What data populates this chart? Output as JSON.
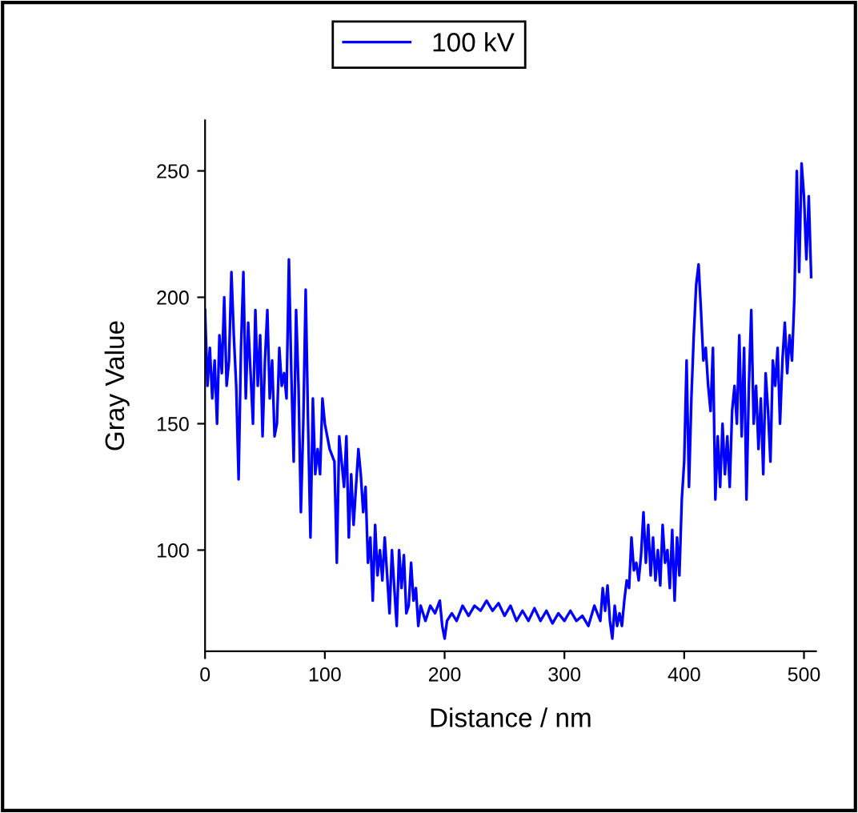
{
  "chart_data": {
    "type": "line",
    "xlabel": "Distance / nm",
    "ylabel": "Gray Value",
    "xlim": [
      0,
      510
    ],
    "ylim": [
      60,
      270
    ],
    "xticks": [
      0,
      100,
      200,
      300,
      400,
      500
    ],
    "yticks": [
      100,
      150,
      200,
      250
    ],
    "grid": false,
    "legend": "top",
    "marker": "none",
    "line_style": "solid",
    "series": [
      {
        "name": "100 kV",
        "color": "#0000ff",
        "x": [
          0,
          2,
          4,
          6,
          8,
          10,
          12,
          14,
          16,
          18,
          20,
          22,
          24,
          26,
          28,
          30,
          32,
          34,
          36,
          38,
          40,
          42,
          44,
          46,
          48,
          50,
          52,
          54,
          56,
          58,
          60,
          62,
          64,
          66,
          68,
          70,
          72,
          74,
          76,
          78,
          80,
          82,
          84,
          86,
          88,
          90,
          92,
          94,
          96,
          98,
          100,
          104,
          108,
          110,
          112,
          116,
          118,
          120,
          122,
          124,
          126,
          128,
          130,
          132,
          134,
          136,
          138,
          140,
          142,
          144,
          146,
          148,
          150,
          152,
          154,
          156,
          158,
          160,
          162,
          164,
          166,
          168,
          170,
          172,
          174,
          176,
          178,
          180,
          184,
          188,
          192,
          196,
          198,
          200,
          202,
          206,
          210,
          215,
          220,
          225,
          230,
          235,
          240,
          245,
          250,
          255,
          260,
          265,
          270,
          275,
          280,
          285,
          290,
          295,
          300,
          305,
          310,
          315,
          320,
          325,
          330,
          332,
          334,
          336,
          338,
          340,
          342,
          344,
          346,
          348,
          350,
          352,
          354,
          356,
          358,
          360,
          362,
          364,
          366,
          368,
          370,
          372,
          374,
          376,
          378,
          380,
          382,
          384,
          386,
          388,
          390,
          392,
          394,
          396,
          398,
          400,
          402,
          404,
          406,
          408,
          410,
          412,
          414,
          416,
          418,
          420,
          422,
          424,
          426,
          428,
          430,
          432,
          434,
          436,
          438,
          440,
          442,
          444,
          446,
          448,
          450,
          452,
          454,
          456,
          458,
          460,
          462,
          464,
          466,
          468,
          470,
          472,
          474,
          476,
          478,
          480,
          482,
          484,
          486,
          488,
          490,
          492,
          494,
          496,
          498,
          500,
          502,
          504,
          506
        ],
        "values": [
          195,
          165,
          180,
          160,
          175,
          150,
          185,
          170,
          200,
          165,
          175,
          210,
          185,
          165,
          128,
          180,
          210,
          160,
          190,
          170,
          150,
          195,
          165,
          185,
          145,
          175,
          195,
          160,
          175,
          145,
          150,
          180,
          165,
          170,
          160,
          215,
          170,
          135,
          195,
          165,
          115,
          150,
          203,
          150,
          105,
          160,
          130,
          140,
          130,
          160,
          150,
          140,
          135,
          95,
          145,
          125,
          145,
          105,
          130,
          110,
          125,
          140,
          130,
          115,
          125,
          95,
          105,
          80,
          110,
          90,
          100,
          88,
          105,
          90,
          75,
          100,
          85,
          70,
          100,
          85,
          98,
          75,
          78,
          95,
          80,
          85,
          70,
          78,
          72,
          78,
          75,
          80,
          70,
          65,
          72,
          75,
          72,
          78,
          74,
          78,
          76,
          80,
          76,
          79,
          74,
          78,
          72,
          76,
          72,
          77,
          72,
          76,
          71,
          75,
          72,
          76,
          72,
          74,
          70,
          78,
          72,
          85,
          76,
          86,
          72,
          65,
          78,
          70,
          75,
          70,
          80,
          88,
          85,
          105,
          92,
          95,
          88,
          98,
          115,
          95,
          110,
          90,
          105,
          88,
          100,
          86,
          110,
          95,
          100,
          85,
          108,
          80,
          105,
          90,
          120,
          135,
          175,
          125,
          160,
          185,
          205,
          213,
          195,
          175,
          180,
          165,
          155,
          180,
          120,
          145,
          125,
          150,
          130,
          145,
          125,
          155,
          165,
          150,
          185,
          145,
          180,
          120,
          165,
          195,
          150,
          165,
          140,
          160,
          130,
          170,
          155,
          135,
          175,
          165,
          180,
          150,
          175,
          190,
          170,
          185,
          175,
          200,
          250,
          210,
          253,
          240,
          215,
          240,
          208
        ]
      }
    ]
  }
}
